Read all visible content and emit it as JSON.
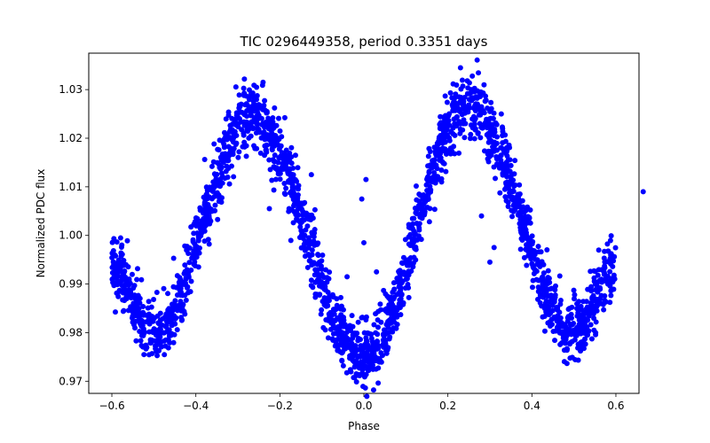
{
  "chart_data": {
    "type": "scatter",
    "title": "TIC 0296449358, period 0.3351 days",
    "xlabel": "Phase",
    "ylabel": "Normalized PDC flux",
    "xlim": [
      -0.655,
      0.655
    ],
    "ylim": [
      0.9675,
      1.0375
    ],
    "xticks": [
      -0.6,
      -0.4,
      -0.2,
      0.0,
      0.2,
      0.4,
      0.6
    ],
    "xtick_labels": [
      "−0.6",
      "−0.4",
      "−0.2",
      "0.0",
      "0.2",
      "0.4",
      "0.6"
    ],
    "yticks": [
      0.97,
      0.98,
      0.99,
      1.0,
      1.01,
      1.02,
      1.03
    ],
    "ytick_labels": [
      "0.97",
      "0.98",
      "0.99",
      "1.00",
      "1.01",
      "1.02",
      "1.03"
    ],
    "grid": false,
    "marker_color": "#0000ff",
    "x_range_of_points": [
      -0.6,
      0.6
    ],
    "light_curve": {
      "period_days": 0.3351,
      "shape": "double-humped (ellipsoidal / W UMa-like)",
      "maxima": [
        {
          "phase": -0.27,
          "flux": 1.024
        },
        {
          "phase": 0.25,
          "flux": 1.027
        }
      ],
      "minima": [
        {
          "phase": -0.5,
          "flux": 0.98
        },
        {
          "phase": 0.0,
          "flux": 0.975
        },
        {
          "phase": 0.5,
          "flux": 0.98
        }
      ],
      "edge_flux": {
        "phase_-0.6": 0.993,
        "phase_0.6": 0.993
      },
      "scatter_half_width": 0.006
    },
    "outliers": [
      {
        "x": 0.005,
        "y": 1.0115
      },
      {
        "x": -0.005,
        "y": 1.0075
      },
      {
        "x": 0.0,
        "y": 0.9985
      },
      {
        "x": -0.04,
        "y": 0.9915
      },
      {
        "x": 0.03,
        "y": 0.9925
      },
      {
        "x": -0.225,
        "y": 1.0055
      },
      {
        "x": 0.3,
        "y": 0.9945
      },
      {
        "x": 0.31,
        "y": 0.9975
      },
      {
        "x": 0.28,
        "y": 1.004
      },
      {
        "x": 0.665,
        "y": 1.009
      },
      {
        "x": -0.125,
        "y": 1.0125
      },
      {
        "x": 0.185,
        "y": 1.011
      },
      {
        "x": -0.24,
        "y": 1.0315
      },
      {
        "x": 0.23,
        "y": 1.0345
      }
    ]
  }
}
